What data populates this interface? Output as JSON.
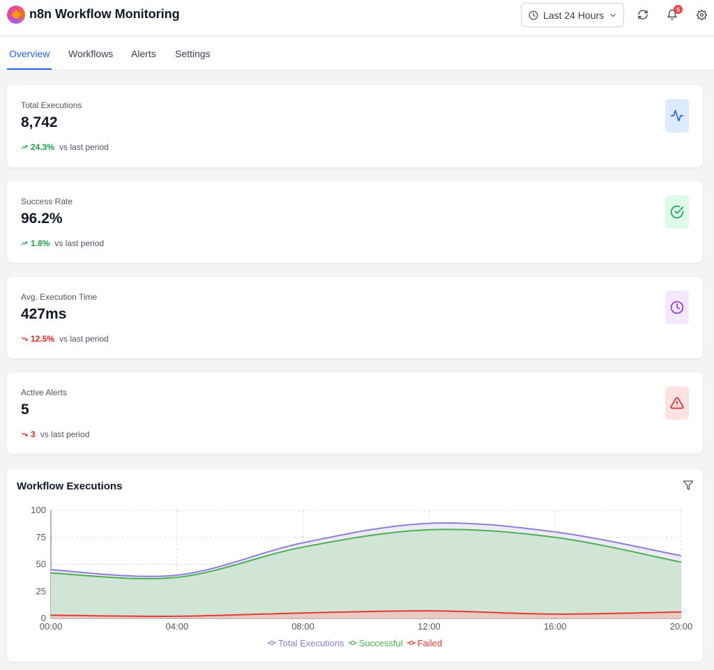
{
  "header": {
    "title": "n8n Workflow Monitoring",
    "time_range": "Last 24 Hours",
    "notification_count": "5"
  },
  "tabs": [
    {
      "label": "Overview",
      "active": true
    },
    {
      "label": "Workflows",
      "active": false
    },
    {
      "label": "Alerts",
      "active": false
    },
    {
      "label": "Settings",
      "active": false
    }
  ],
  "stats": [
    {
      "label": "Total Executions",
      "value": "8,742",
      "trend_value": "24.3%",
      "trend_direction": "up",
      "trend_suffix": "vs last period",
      "icon": "activity-icon",
      "color": "#2563eb",
      "bg": "#dbeafe"
    },
    {
      "label": "Success Rate",
      "value": "96.2%",
      "trend_value": "1.8%",
      "trend_direction": "up",
      "trend_suffix": "vs last period",
      "icon": "check-circle-icon",
      "color": "#16a34a",
      "bg": "#dcfce7"
    },
    {
      "label": "Avg. Execution Time",
      "value": "427ms",
      "trend_value": "12.5%",
      "trend_direction": "down",
      "trend_suffix": "vs last period",
      "icon": "clock-icon",
      "color": "#9333ea",
      "bg": "#f3e8ff"
    },
    {
      "label": "Active Alerts",
      "value": "5",
      "trend_value": "3",
      "trend_direction": "down",
      "trend_suffix": "vs last period",
      "icon": "alert-triangle-icon",
      "color": "#dc2626",
      "bg": "#fee2e2"
    }
  ],
  "chart": {
    "title": "Workflow Executions"
  },
  "chart_data": {
    "type": "area",
    "x": [
      "00:00",
      "04:00",
      "08:00",
      "12:00",
      "16:00",
      "20:00"
    ],
    "ylim": [
      0,
      100
    ],
    "yticks": [
      0,
      25,
      50,
      75,
      100
    ],
    "grid": true,
    "legend": "bottom",
    "series": [
      {
        "name": "Total Executions",
        "values": [
          45,
          40,
          70,
          88,
          80,
          58
        ],
        "color": "#8b7fd6",
        "fill": "#ece9f8"
      },
      {
        "name": "Successful",
        "values": [
          42,
          38,
          66,
          82,
          75,
          52
        ],
        "color": "#4caf50",
        "fill": "#cfe5d3"
      },
      {
        "name": "Failed",
        "values": [
          3,
          2,
          5,
          7,
          4,
          6
        ],
        "color": "#e53935",
        "fill": "#e8c9c2"
      }
    ]
  }
}
